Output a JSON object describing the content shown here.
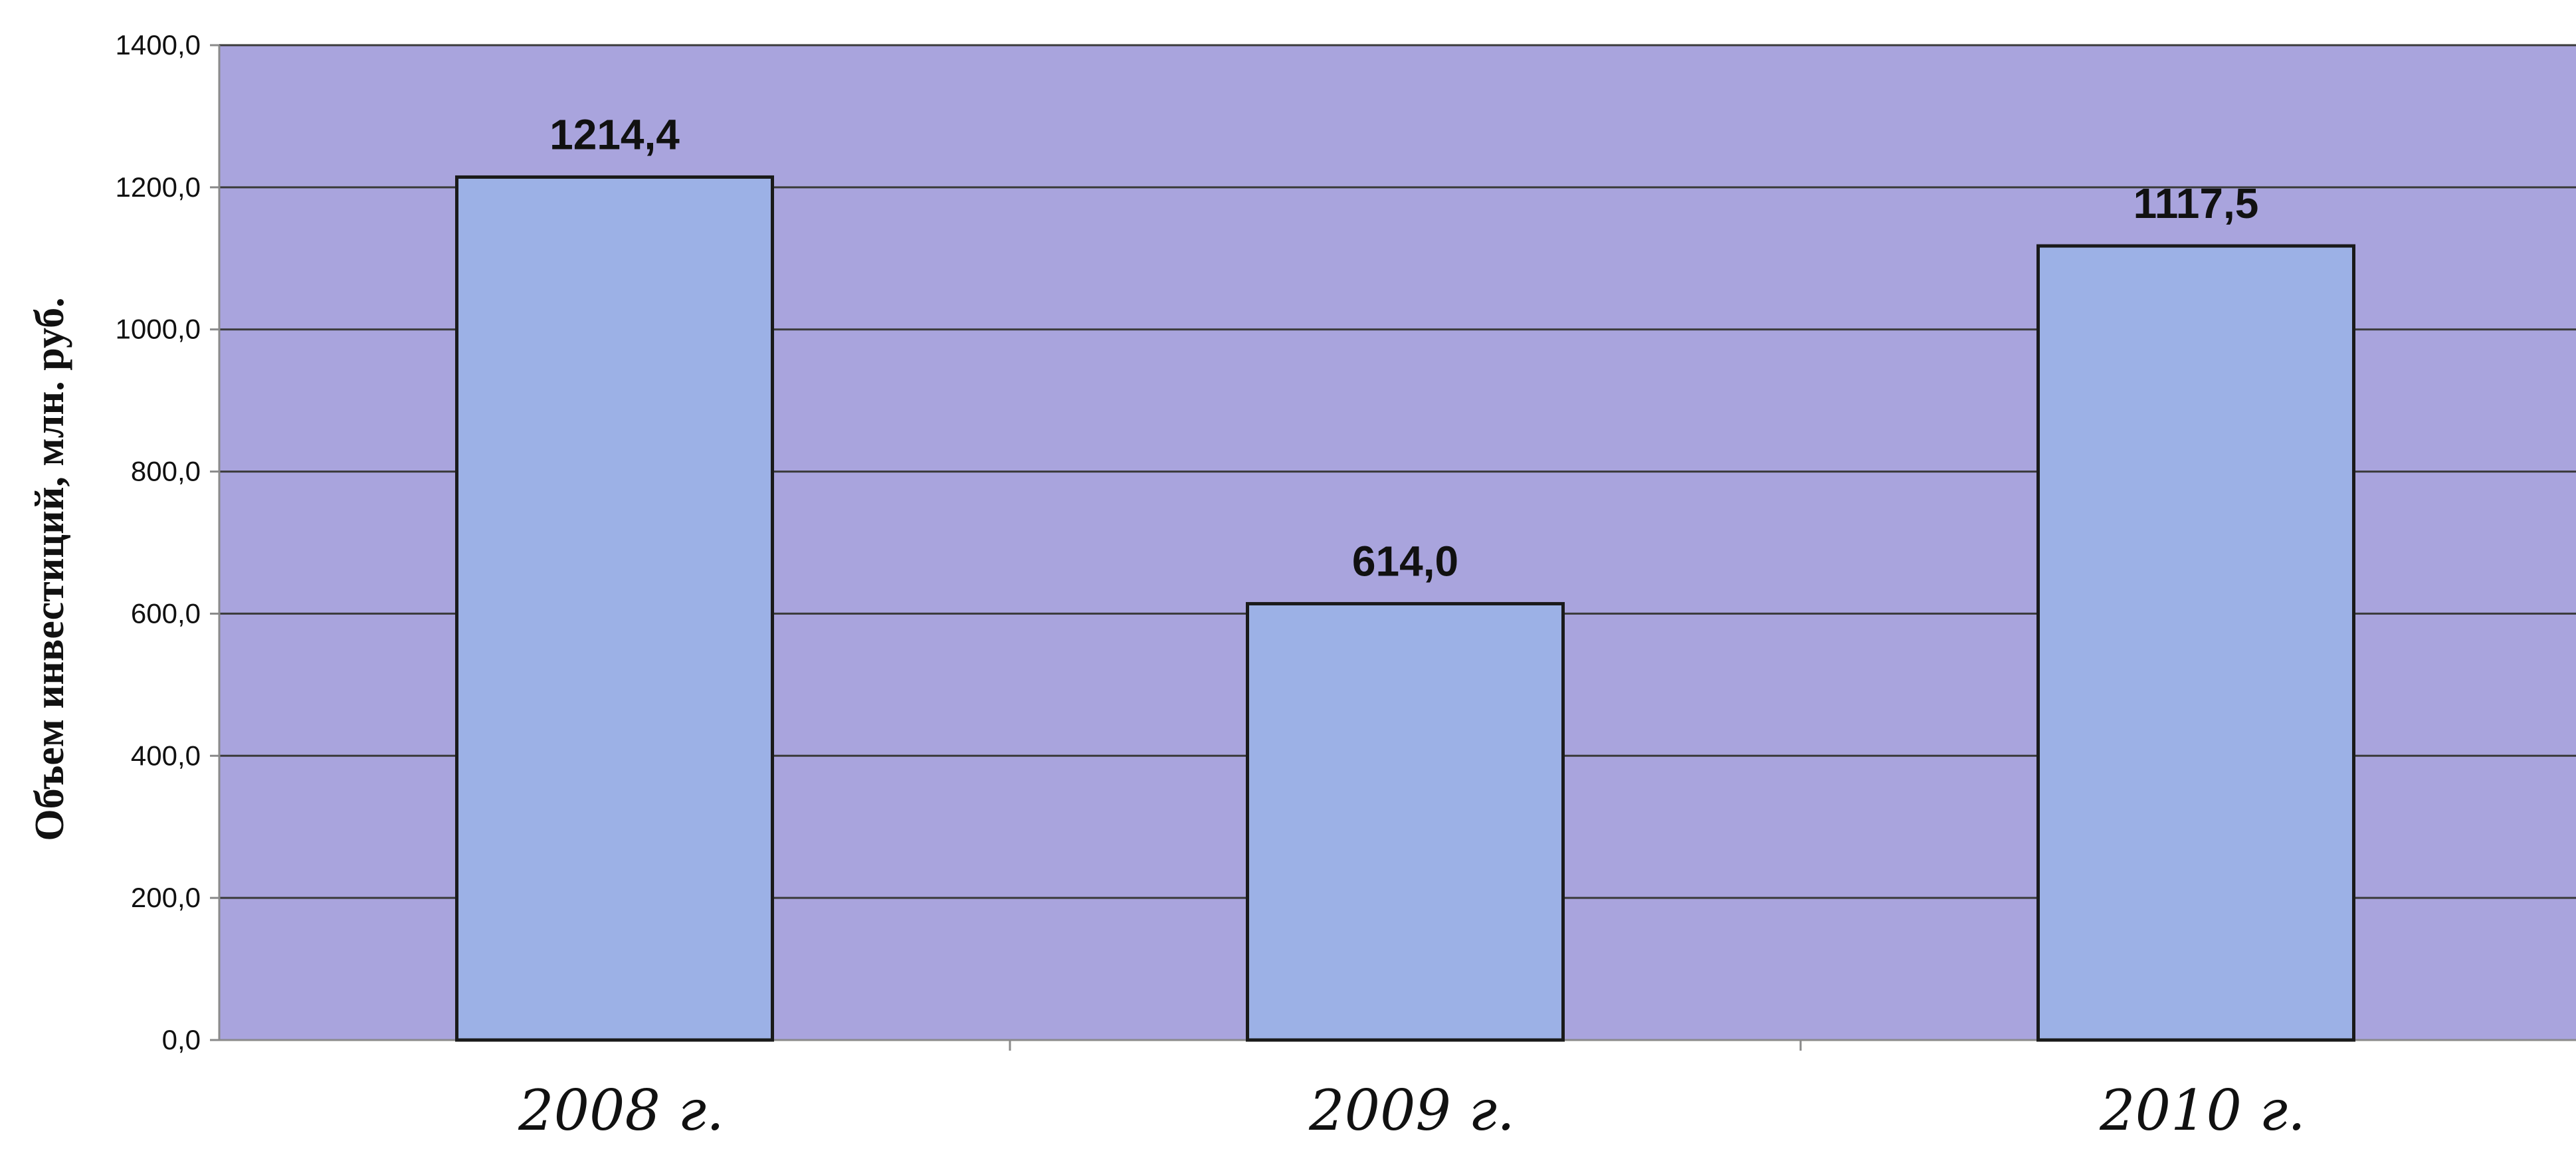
{
  "chart_data": {
    "type": "bar",
    "categories": [
      "2008 г.",
      "2009 г.",
      "2010 г."
    ],
    "values": [
      1214.4,
      614.0,
      1117.5
    ],
    "data_labels": [
      "1214,4",
      "614,0",
      "1117,5"
    ],
    "ylabel": "Объем инвестиций, млн. руб.",
    "ylim": [
      0,
      1400
    ],
    "yticks": [
      0,
      200,
      400,
      600,
      800,
      1000,
      1200,
      1400
    ],
    "ytick_labels": [
      "0,0",
      "200,0",
      "400,0",
      "600,0",
      "800,0",
      "1000,0",
      "1200,0",
      "1400,0"
    ],
    "grid": true,
    "legend": "none",
    "colors": {
      "plot_background": "#a9a4dd",
      "bar_fill": "#9cb1e6",
      "bar_stroke": "#1a1a1a",
      "gridline": "#3a3a3a",
      "text": "#111111"
    }
  }
}
